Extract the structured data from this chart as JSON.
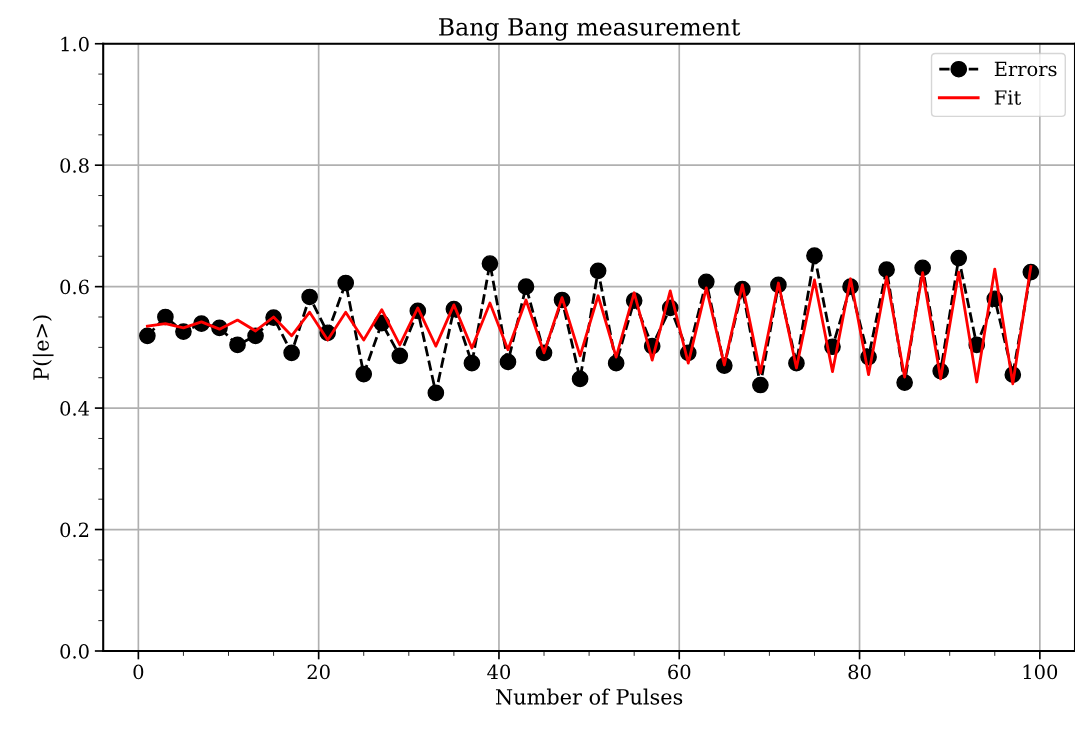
{
  "chart_data": {
    "type": "line",
    "title": "Bang Bang measurement",
    "xlabel": "Number of Pulses",
    "ylabel": "P(|e>)",
    "xlim": [
      -3.9,
      103.9
    ],
    "xticks": [
      0,
      20,
      40,
      60,
      80,
      100
    ],
    "ylim": [
      0.0,
      1.0
    ],
    "yticks": [
      {
        "value": 0.0,
        "label": "0.0"
      },
      {
        "value": 0.2,
        "label": "0.2"
      },
      {
        "value": 0.4,
        "label": "0.4"
      },
      {
        "value": 0.6,
        "label": "0.6"
      },
      {
        "value": 0.8,
        "label": "0.8"
      },
      {
        "value": 1.0,
        "label": "1.0"
      }
    ],
    "grid": true,
    "legend": "top right",
    "x": [
      1,
      3,
      5,
      7,
      9,
      11,
      13,
      15,
      17,
      19,
      21,
      23,
      25,
      27,
      29,
      31,
      33,
      35,
      37,
      39,
      41,
      43,
      45,
      47,
      49,
      51,
      53,
      55,
      57,
      59,
      61,
      63,
      65,
      67,
      69,
      71,
      73,
      75,
      77,
      79,
      81,
      83,
      85,
      87,
      89,
      91,
      93,
      95,
      97,
      99
    ],
    "series": [
      {
        "name": "Errors",
        "color": "#000000",
        "marker": "circle",
        "line_style": "dashed",
        "values": [
          0.519,
          0.55,
          0.526,
          0.539,
          0.532,
          0.504,
          0.519,
          0.549,
          0.491,
          0.583,
          0.524,
          0.606,
          0.456,
          0.54,
          0.486,
          0.56,
          0.425,
          0.563,
          0.474,
          0.638,
          0.476,
          0.6,
          0.491,
          0.578,
          0.448,
          0.626,
          0.474,
          0.577,
          0.502,
          0.565,
          0.491,
          0.608,
          0.47,
          0.596,
          0.438,
          0.603,
          0.474,
          0.651,
          0.501,
          0.6,
          0.484,
          0.628,
          0.442,
          0.631,
          0.461,
          0.647,
          0.504,
          0.58,
          0.455,
          0.624
        ]
      },
      {
        "name": "Fit",
        "color": "#ff0000",
        "marker": "none",
        "line_style": "solid",
        "values": [
          0.535,
          0.539,
          0.532,
          0.542,
          0.53,
          0.545,
          0.527,
          0.55,
          0.519,
          0.558,
          0.512,
          0.558,
          0.512,
          0.562,
          0.504,
          0.565,
          0.502,
          0.57,
          0.499,
          0.573,
          0.496,
          0.578,
          0.491,
          0.582,
          0.486,
          0.585,
          0.484,
          0.59,
          0.479,
          0.593,
          0.474,
          0.598,
          0.471,
          0.603,
          0.458,
          0.606,
          0.466,
          0.611,
          0.46,
          0.613,
          0.455,
          0.616,
          0.451,
          0.623,
          0.448,
          0.624,
          0.443,
          0.629,
          0.44,
          0.633
        ]
      }
    ]
  }
}
